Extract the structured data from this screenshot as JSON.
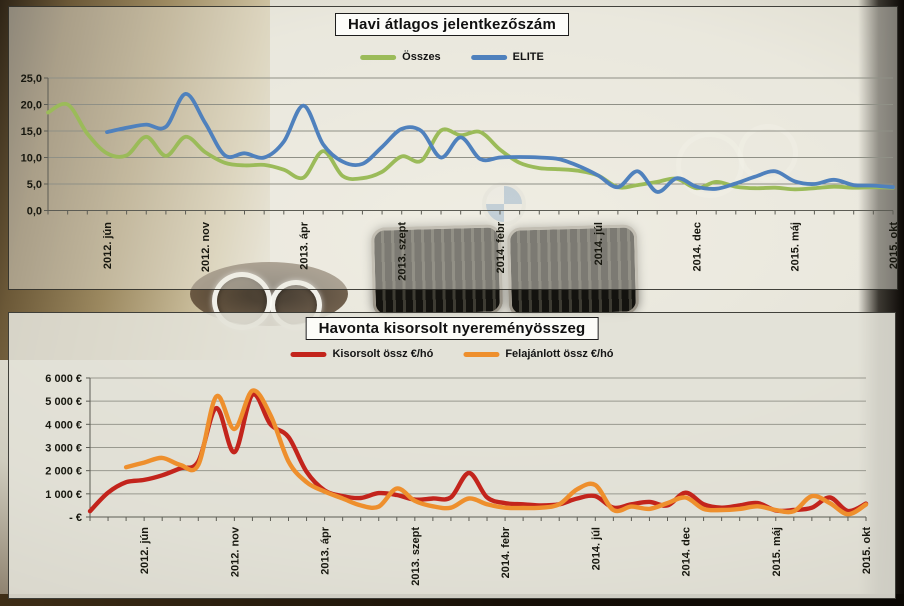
{
  "chart_data": [
    {
      "type": "line",
      "title": "Havi átlagos jelentkezőszám",
      "n_points": 44,
      "x_tick_labels": [
        "2012. jún",
        "2012. nov",
        "2013. ápr",
        "2013. szept",
        "2014. febr",
        "2014. júl",
        "2014. dec",
        "2015. máj",
        "2015. okt"
      ],
      "x_tick_indices": [
        3,
        8,
        13,
        18,
        23,
        28,
        33,
        38,
        43
      ],
      "ylim": [
        0,
        25
      ],
      "grid": true,
      "legend_position": "top-center",
      "y_ticks": [
        {
          "v": 0,
          "label": "0,0"
        },
        {
          "v": 5,
          "label": "5,0"
        },
        {
          "v": 10,
          "label": "10,0"
        },
        {
          "v": 15,
          "label": "15,0"
        },
        {
          "v": 20,
          "label": "20,0"
        },
        {
          "v": 25,
          "label": "25,0"
        }
      ],
      "series": [
        {
          "name": "Összes",
          "color": "#9BBB59",
          "values": [
            18.5,
            20.0,
            14.5,
            10.8,
            10.4,
            13.9,
            10.3,
            13.9,
            11.0,
            9.0,
            8.5,
            8.6,
            7.7,
            6.2,
            11.2,
            6.5,
            6.1,
            7.3,
            10.2,
            9.4,
            15.1,
            14.2,
            14.8,
            11.5,
            9.0,
            8.0,
            7.8,
            7.5,
            6.6,
            4.4,
            4.8,
            5.4,
            6.0,
            4.2,
            5.4,
            4.5,
            4.2,
            4.3,
            4.0,
            4.2,
            4.5,
            4.3,
            4.4,
            4.3
          ]
        },
        {
          "name": "ELITE",
          "color": "#4F81BD",
          "values": [
            null,
            null,
            null,
            14.8,
            15.6,
            16.2,
            15.8,
            22.0,
            16.5,
            10.4,
            10.8,
            10.0,
            13.0,
            19.8,
            12.5,
            9.2,
            8.8,
            12.0,
            15.4,
            15.0,
            10.0,
            13.8,
            9.7,
            10.0,
            10.1,
            10.0,
            9.7,
            8.4,
            6.6,
            4.4,
            7.4,
            3.5,
            6.1,
            4.5,
            4.1,
            5.1,
            6.4,
            7.4,
            5.5,
            5.0,
            5.8,
            4.8,
            4.7,
            4.4
          ]
        }
      ]
    },
    {
      "type": "line",
      "title": "Havonta kisorsolt nyereményösszeg",
      "n_points": 44,
      "x_tick_labels": [
        "2012. jún",
        "2012. nov",
        "2013. ápr",
        "2013. szept",
        "2014. febr",
        "2014. júl",
        "2014. dec",
        "2015. máj",
        "2015. okt"
      ],
      "x_tick_indices": [
        3,
        8,
        13,
        18,
        23,
        28,
        33,
        38,
        43
      ],
      "ylim": [
        0,
        6000
      ],
      "grid": true,
      "legend_position": "top-center",
      "y_ticks": [
        {
          "v": 0,
          "label": "- €"
        },
        {
          "v": 1000,
          "label": "1 000 €"
        },
        {
          "v": 2000,
          "label": "2 000 €"
        },
        {
          "v": 3000,
          "label": "3 000 €"
        },
        {
          "v": 4000,
          "label": "4 000 €"
        },
        {
          "v": 5000,
          "label": "5 000 €"
        },
        {
          "v": 6000,
          "label": "6 000 €"
        }
      ],
      "series": [
        {
          "name": "Kisorsolt össz €/hó",
          "color": "#C3241C",
          "values": [
            250,
            1050,
            1500,
            1600,
            1800,
            2100,
            2400,
            4700,
            2800,
            5280,
            4000,
            3450,
            1950,
            1150,
            900,
            820,
            1030,
            950,
            750,
            800,
            850,
            1900,
            850,
            600,
            550,
            500,
            550,
            800,
            900,
            400,
            550,
            650,
            500,
            1050,
            550,
            400,
            500,
            600,
            280,
            300,
            400,
            840,
            260,
            580
          ]
        },
        {
          "name": "Felajánlott össz €/hó",
          "color": "#EE8F2D",
          "values": [
            null,
            null,
            2150,
            2350,
            2550,
            2250,
            2250,
            5200,
            3800,
            5450,
            4400,
            2400,
            1500,
            1100,
            800,
            500,
            450,
            1230,
            700,
            460,
            400,
            800,
            550,
            400,
            390,
            400,
            550,
            1200,
            1380,
            300,
            450,
            350,
            600,
            840,
            350,
            300,
            350,
            460,
            300,
            250,
            900,
            600,
            120,
            540
          ]
        }
      ]
    }
  ]
}
